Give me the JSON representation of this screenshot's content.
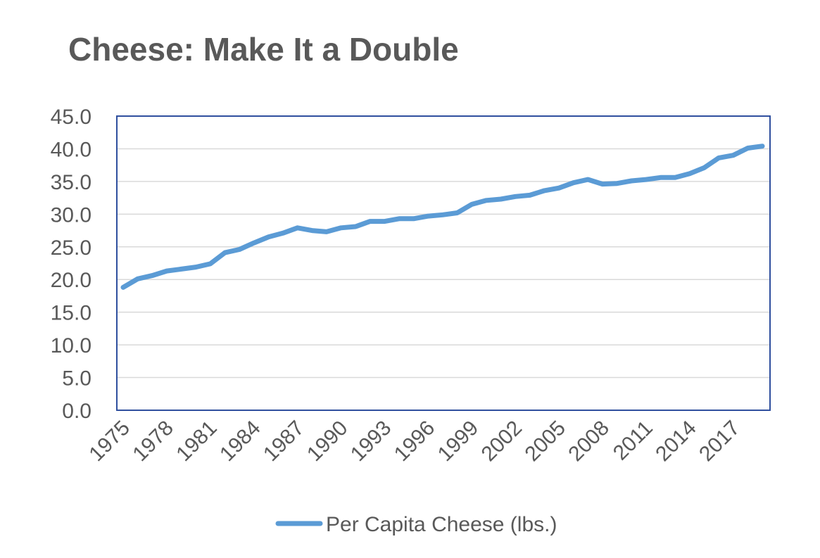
{
  "chart_data": {
    "type": "line",
    "title": "Cheese: Make It a Double",
    "xlabel": "",
    "ylabel": "",
    "x": [
      1975,
      1976,
      1977,
      1978,
      1979,
      1980,
      1981,
      1982,
      1983,
      1984,
      1985,
      1986,
      1987,
      1988,
      1989,
      1990,
      1991,
      1992,
      1993,
      1994,
      1995,
      1996,
      1997,
      1998,
      1999,
      2000,
      2001,
      2002,
      2003,
      2004,
      2005,
      2006,
      2007,
      2008,
      2009,
      2010,
      2011,
      2012,
      2013,
      2014,
      2015,
      2016,
      2017,
      2018,
      2019
    ],
    "x_tick_labels": [
      "1975",
      "1978",
      "1981",
      "1984",
      "1987",
      "1990",
      "1993",
      "1996",
      "1999",
      "2002",
      "2005",
      "2008",
      "2011",
      "2014",
      "2017"
    ],
    "y_tick_labels": [
      "0.0",
      "5.0",
      "10.0",
      "15.0",
      "20.0",
      "25.0",
      "30.0",
      "35.0",
      "40.0",
      "45.0"
    ],
    "ylim": [
      0,
      45
    ],
    "grid": true,
    "legend_position": "bottom",
    "series": [
      {
        "name": "Per Capita Cheese (lbs.)",
        "color": "#5b9bd5",
        "values": [
          18.8,
          20.1,
          20.6,
          21.3,
          21.6,
          21.9,
          22.4,
          24.1,
          24.6,
          25.6,
          26.5,
          27.1,
          27.9,
          27.5,
          27.3,
          27.9,
          28.1,
          28.9,
          28.9,
          29.3,
          29.3,
          29.7,
          29.9,
          30.2,
          31.5,
          32.1,
          32.3,
          32.7,
          32.9,
          33.6,
          34.0,
          34.8,
          35.3,
          34.6,
          34.7,
          35.1,
          35.3,
          35.6,
          35.6,
          36.2,
          37.1,
          38.6,
          39.0,
          40.1,
          40.4
        ]
      }
    ],
    "colors": {
      "line": "#5b9bd5",
      "plot_border": "#2f4f9e",
      "gridline": "#d9d9d9",
      "text": "#595959"
    }
  }
}
